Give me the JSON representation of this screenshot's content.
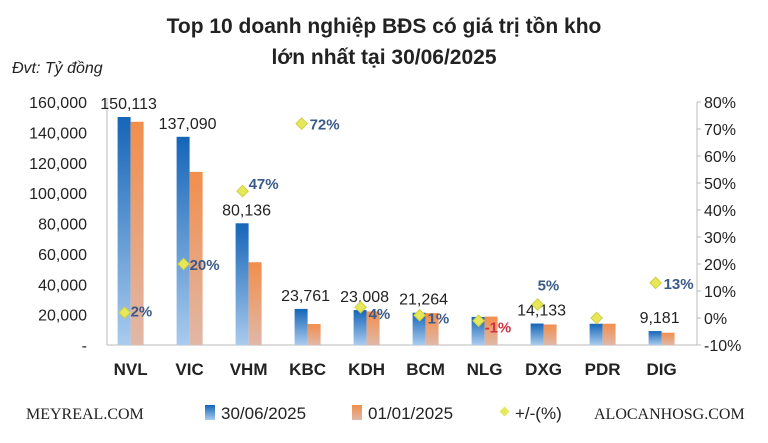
{
  "chart_data": {
    "type": "bar",
    "title_line1": "Top 10 doanh nghiệp BĐS có giá trị tồn kho",
    "title_line2": "lớn nhất tại 30/06/2025",
    "unit_label": "Đvt: Tỷ đồng",
    "categories": [
      "NVL",
      "VIC",
      "VHM",
      "KBC",
      "KDH",
      "BCM",
      "NLG",
      "DXG",
      "PDR",
      "DIG"
    ],
    "series": [
      {
        "name": "30/06/2025",
        "axis": "left",
        "values": [
          150113,
          137090,
          80136,
          23761,
          23008,
          21264,
          18500,
          14133,
          14000,
          9181
        ],
        "color": "#1f6fbf"
      },
      {
        "name": "01/01/2025",
        "axis": "left",
        "values": [
          147000,
          114000,
          54500,
          13800,
          22100,
          21000,
          18700,
          13500,
          14000,
          8100
        ],
        "color": "#f0955a"
      },
      {
        "name": "+/-(%)",
        "axis": "right",
        "type": "scatter",
        "values": [
          2,
          20,
          47,
          72,
          4,
          1,
          -1,
          5,
          0,
          13
        ],
        "color": "#e6e85a"
      }
    ],
    "bar_labels": [
      "150,113",
      "137,090",
      "80,136",
      "23,761",
      "23,008",
      "21,264",
      "",
      "14,133",
      "",
      "9,181"
    ],
    "pct_labels": [
      "2%",
      "20%",
      "47%",
      "72%",
      "4%",
      "1%",
      "-1%",
      "5%",
      "",
      "13%"
    ],
    "left_ticks": [
      "-",
      "20,000",
      "40,000",
      "60,000",
      "80,000",
      "100,000",
      "120,000",
      "140,000",
      "160,000"
    ],
    "right_ticks": [
      "-10%",
      "0%",
      "10%",
      "20%",
      "30%",
      "40%",
      "50%",
      "60%",
      "70%",
      "80%"
    ],
    "ylim_left": [
      0,
      160000
    ],
    "ylim_right": [
      -10,
      80
    ],
    "legend_position": "bottom"
  },
  "footer": {
    "left": "MEYREAL.COM",
    "right": "ALOCANHOSG.COM"
  }
}
